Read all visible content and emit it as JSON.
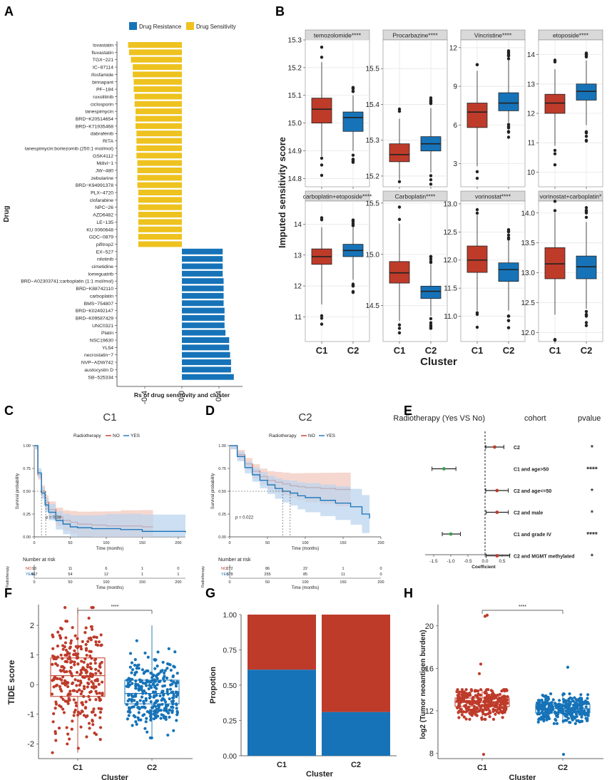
{
  "colors": {
    "red": "#BE3B2A",
    "blue": "#1673B8",
    "yellow": "#EEC21F",
    "pinkband": "#F2C9BF",
    "blueband": "#BCD4EE",
    "green": "#3F9F4C",
    "grey": "#EBEBEB"
  },
  "panels": {
    "a": "A",
    "b": "B",
    "c": "C",
    "d": "D",
    "e": "E",
    "f": "F",
    "g": "G",
    "h": "H"
  },
  "chart_data": [
    {
      "id": "A",
      "type": "bar",
      "orientation": "horizontal",
      "legend": [
        "Drug Resistance",
        "Drug Sensitivity"
      ],
      "ylabel": "Drug",
      "xlabel": "Rs of drug sensitivity and cluster",
      "xticks": [
        "-0.4",
        "0.0",
        "0.4"
      ],
      "xlim": [
        -0.62,
        0.62
      ],
      "drugs": [
        "lovastatin",
        "fluvastatin",
        "TGX−221",
        "IC−87114",
        "ifosfamide",
        "birinapant",
        "PF−184",
        "ruxolitinib",
        "ciclosporin",
        "tanespimycin",
        "BRD−K20514654",
        "BRD−K71935468",
        "dabrafenib",
        "RITA",
        "tanespimycin:bortezomib (250:1 mol/mol)",
        "GSK4112",
        "Mdivi−1",
        "JW−480",
        "zebularine",
        "BRD−K94991378",
        "PLX−4720",
        "clofarabine",
        "NPC−26",
        "AZD6482",
        "LE−135",
        "KU 0060648",
        "GDC−0879",
        "pifitrop2",
        "EX−527",
        "nilotinib",
        "cimetidine",
        "lomeguatrib",
        "BRD−A02303741:carboplatin (1:1 mol/mol)",
        "BRD−K88742110",
        "carboplatin",
        "BMS−754807",
        "BRD−K02492147",
        "BRD−K09587429",
        "UNC0321",
        "Platin",
        "NSC19630",
        "YL54",
        "necrostatin−7",
        "NVP−ADW742",
        "austocystin D",
        "SB−525334"
      ],
      "values": [
        -0.58,
        -0.57,
        -0.55,
        -0.53,
        -0.53,
        -0.52,
        -0.52,
        -0.51,
        -0.51,
        -0.5,
        -0.5,
        -0.5,
        -0.49,
        -0.49,
        -0.49,
        -0.49,
        -0.48,
        -0.48,
        -0.48,
        -0.48,
        -0.47,
        -0.47,
        -0.47,
        -0.47,
        -0.47,
        -0.47,
        -0.47,
        -0.47,
        0.44,
        0.44,
        0.44,
        0.44,
        0.45,
        0.45,
        0.45,
        0.45,
        0.46,
        0.46,
        0.46,
        0.47,
        0.51,
        0.51,
        0.52,
        0.53,
        0.53,
        0.56
      ]
    },
    {
      "id": "B",
      "type": "boxplot",
      "xlabel": "Cluster",
      "ylabel": "Imputed sensitivity score",
      "categories": [
        "C1",
        "C2"
      ],
      "facets": [
        {
          "title": "temozolomide****",
          "ylim": [
            14.77,
            15.3
          ],
          "yticks": [
            "14.8",
            "14.9",
            "15.0",
            "15.1",
            "15.2",
            "15.3"
          ],
          "tickvals": [
            14.8,
            14.9,
            15.0,
            15.1,
            15.2,
            15.3
          ],
          "C1": [
            14.88,
            15.0,
            15.05,
            15.09,
            15.22
          ],
          "C2": [
            14.9,
            14.97,
            15.02,
            15.04,
            15.1
          ]
        },
        {
          "title": "Procarbazine****",
          "ylim": [
            15.17,
            15.58
          ],
          "yticks": [
            "15.2",
            "15.3",
            "15.4",
            "15.5"
          ],
          "tickvals": [
            15.2,
            15.3,
            15.4,
            15.5
          ],
          "C1": [
            15.19,
            15.24,
            15.26,
            15.29,
            15.36
          ],
          "C2": [
            15.21,
            15.27,
            15.29,
            15.31,
            15.39
          ]
        },
        {
          "title": "Vincristine****",
          "ylim": [
            1.2,
            12.6
          ],
          "yticks": [
            "3",
            "6",
            "9",
            "12"
          ],
          "tickvals": [
            3,
            6,
            9,
            12
          ],
          "C1": [
            2.8,
            5.8,
            7.0,
            7.7,
            10.2
          ],
          "C2": [
            6.2,
            7.1,
            7.7,
            8.5,
            11.0
          ]
        },
        {
          "title": "etoposide****",
          "ylim": [
            9.5,
            14.5
          ],
          "yticks": [
            "10",
            "11",
            "12",
            "13",
            "14"
          ],
          "tickvals": [
            10,
            11,
            12,
            13,
            14
          ],
          "C1": [
            10.9,
            12.0,
            12.35,
            12.65,
            13.5
          ],
          "C2": [
            11.6,
            12.45,
            12.75,
            13.0,
            13.8
          ]
        },
        {
          "title": "carboplatin+etoposide****",
          "ylim": [
            10.2,
            14.75
          ],
          "yticks": [
            "11",
            "12",
            "13",
            "14"
          ],
          "tickvals": [
            11,
            12,
            13,
            14
          ],
          "C1": [
            11.4,
            12.7,
            12.95,
            13.2,
            13.9
          ],
          "C2": [
            12.2,
            12.95,
            13.15,
            13.35,
            13.9
          ]
        },
        {
          "title": "Carboplatin****",
          "ylim": [
            14.15,
            15.52
          ],
          "yticks": [
            "14.5",
            "15.0",
            "15.5"
          ],
          "tickvals": [
            14.5,
            15.0,
            15.5
          ],
          "C1": [
            14.35,
            14.72,
            14.82,
            14.93,
            15.3
          ],
          "C2": [
            14.4,
            14.57,
            14.64,
            14.69,
            14.9
          ]
        },
        {
          "title": "vorinostat****",
          "ylim": [
            10.55,
            13.05
          ],
          "yticks": [
            "11.0",
            "11.5",
            "12.0",
            "12.5",
            "13.0"
          ],
          "tickvals": [
            11.0,
            11.5,
            12.0,
            12.5,
            13.0
          ],
          "C1": [
            11.1,
            11.78,
            12.0,
            12.25,
            12.8
          ],
          "C2": [
            11.1,
            11.62,
            11.83,
            11.95,
            12.35
          ]
        },
        {
          "title": "vorinostat+carboplatin*",
          "ylim": [
            11.85,
            14.2
          ],
          "yticks": [
            "12.0",
            "12.5",
            "13.0",
            "13.5",
            "14.0"
          ],
          "tickvals": [
            12.0,
            12.5,
            13.0,
            13.5,
            14.0
          ],
          "C1": [
            12.3,
            12.9,
            13.15,
            13.42,
            14.0
          ],
          "C2": [
            12.4,
            12.9,
            13.1,
            13.28,
            13.85
          ]
        }
      ]
    },
    {
      "id": "C",
      "type": "line",
      "title": "C1",
      "legend_title": "Radiotherapy",
      "series_names": [
        "NO",
        "YES"
      ],
      "ylabel": "Survival probability",
      "xlabel": "Time (months)",
      "yticks": [
        "0.00",
        "0.25",
        "0.50",
        "0.75",
        "1.00"
      ],
      "xticks": [
        "0",
        "50",
        "100",
        "150",
        "200"
      ],
      "xlim": [
        0,
        210
      ],
      "pvalue": "p = 0.38",
      "NO": {
        "t": [
          0,
          5,
          10,
          15,
          20,
          30,
          40,
          50,
          60,
          80,
          100,
          120,
          150,
          165
        ],
        "s": [
          1.0,
          0.68,
          0.5,
          0.38,
          0.3,
          0.22,
          0.18,
          0.16,
          0.14,
          0.13,
          0.12,
          0.12,
          0.11,
          0.11
        ]
      },
      "YES": {
        "t": [
          0,
          5,
          10,
          15,
          20,
          30,
          40,
          50,
          60,
          80,
          100,
          120,
          150,
          210
        ],
        "s": [
          1.0,
          0.7,
          0.48,
          0.35,
          0.27,
          0.18,
          0.14,
          0.11,
          0.1,
          0.09,
          0.09,
          0.08,
          0.06,
          0.05
        ]
      },
      "risk_title": "Number at risk",
      "risk_ylabel": "Radiotherapy",
      "risk": {
        "NO": [
          "93",
          "11",
          "6",
          "1",
          "0"
        ],
        "YES": [
          "467",
          "54",
          "12",
          "1",
          "1"
        ]
      }
    },
    {
      "id": "D",
      "type": "line",
      "title": "C2",
      "legend_title": "Radiotherapy",
      "series_names": [
        "NO",
        "YES"
      ],
      "ylabel": "Survival probability",
      "xlabel": "Time (months)",
      "yticks": [
        "0.00",
        "0.25",
        "0.50",
        "0.75",
        "1.00"
      ],
      "xticks": [
        "0",
        "50",
        "100",
        "150",
        "200"
      ],
      "xlim": [
        0,
        200
      ],
      "pvalue": "p = 0.022",
      "NO": {
        "t": [
          0,
          10,
          20,
          30,
          40,
          50,
          60,
          70,
          80,
          90,
          100,
          120,
          140,
          160
        ],
        "s": [
          1.0,
          0.9,
          0.8,
          0.72,
          0.66,
          0.62,
          0.6,
          0.58,
          0.56,
          0.55,
          0.54,
          0.53,
          0.52,
          0.52
        ]
      },
      "YES": {
        "t": [
          0,
          10,
          20,
          30,
          40,
          50,
          60,
          70,
          80,
          90,
          100,
          120,
          140,
          160,
          175,
          185
        ],
        "s": [
          1.0,
          0.88,
          0.76,
          0.68,
          0.62,
          0.57,
          0.53,
          0.5,
          0.48,
          0.45,
          0.43,
          0.4,
          0.37,
          0.33,
          0.25,
          0.2
        ]
      },
      "risk_title": "Number at risk",
      "risk_ylabel": "Radiotherapy",
      "risk": {
        "NO": [
          "272",
          "86",
          "22",
          "1",
          "0"
        ],
        "YES": [
          "678",
          "255",
          "85",
          "11",
          "0"
        ]
      }
    },
    {
      "id": "E",
      "type": "scatter",
      "subtype": "forest",
      "header": [
        "Radiotherapy (Yes VS No)",
        "cohort",
        "pvalue"
      ],
      "xlabel": "Coefficient",
      "xticks": [
        "-1.5",
        "-1.0",
        "-0.5",
        "0.0",
        "0.5"
      ],
      "xlim": [
        -1.75,
        0.75
      ],
      "rows": [
        {
          "cohort": "C2",
          "coef": 0.28,
          "lo": 0.02,
          "hi": 0.55,
          "p": "*"
        },
        {
          "cohort": "C1 and age>50",
          "coef": -1.2,
          "lo": -1.55,
          "hi": -0.85,
          "p": "****"
        },
        {
          "cohort": "C2 and age<=50",
          "coef": 0.35,
          "lo": 0.02,
          "hi": 0.68,
          "p": "*"
        },
        {
          "cohort": "C2 and male",
          "coef": 0.35,
          "lo": 0.03,
          "hi": 0.68,
          "p": "*"
        },
        {
          "cohort": "C1 and grade IV",
          "coef": -1.0,
          "lo": -1.25,
          "hi": -0.72,
          "p": "****"
        },
        {
          "cohort": "C2 and MGMT methylated",
          "coef": 0.35,
          "lo": 0.03,
          "hi": 0.72,
          "p": "*"
        }
      ]
    },
    {
      "id": "F",
      "type": "boxplot",
      "ylabel": "TIDE score",
      "xlabel": "Cluster",
      "categories": [
        "C1",
        "C2"
      ],
      "yticks": [
        "-2",
        "-1",
        "0",
        "1",
        "2"
      ],
      "ylim": [
        -2.5,
        2.7
      ],
      "signif": "****",
      "C1": [
        -2.3,
        -0.4,
        0.3,
        0.9,
        2.6
      ],
      "C2": [
        -1.8,
        -0.65,
        -0.3,
        0.15,
        2.0
      ]
    },
    {
      "id": "G",
      "type": "bar",
      "subtype": "stacked",
      "ylabel": "Propotion",
      "xlabel": "Cluster",
      "categories": [
        "C1",
        "C2"
      ],
      "yticks": [
        "0.00",
        "0.25",
        "0.50",
        "0.75",
        "1.00"
      ],
      "series": [
        {
          "name": "blue",
          "values": [
            0.61,
            0.31
          ]
        },
        {
          "name": "red",
          "values": [
            0.39,
            0.69
          ]
        }
      ]
    },
    {
      "id": "H",
      "type": "boxplot",
      "ylabel": "log2 (Tumor neoantigen burden)",
      "xlabel": "Cluster",
      "categories": [
        "C1",
        "C2"
      ],
      "yticks": [
        "8",
        "12",
        "16",
        "20"
      ],
      "ylim": [
        7.5,
        22
      ],
      "signif": "****",
      "C1": [
        11.2,
        12.4,
        12.8,
        13.2,
        14.0
      ],
      "C2": [
        10.8,
        11.8,
        12.2,
        12.6,
        13.6
      ]
    }
  ]
}
